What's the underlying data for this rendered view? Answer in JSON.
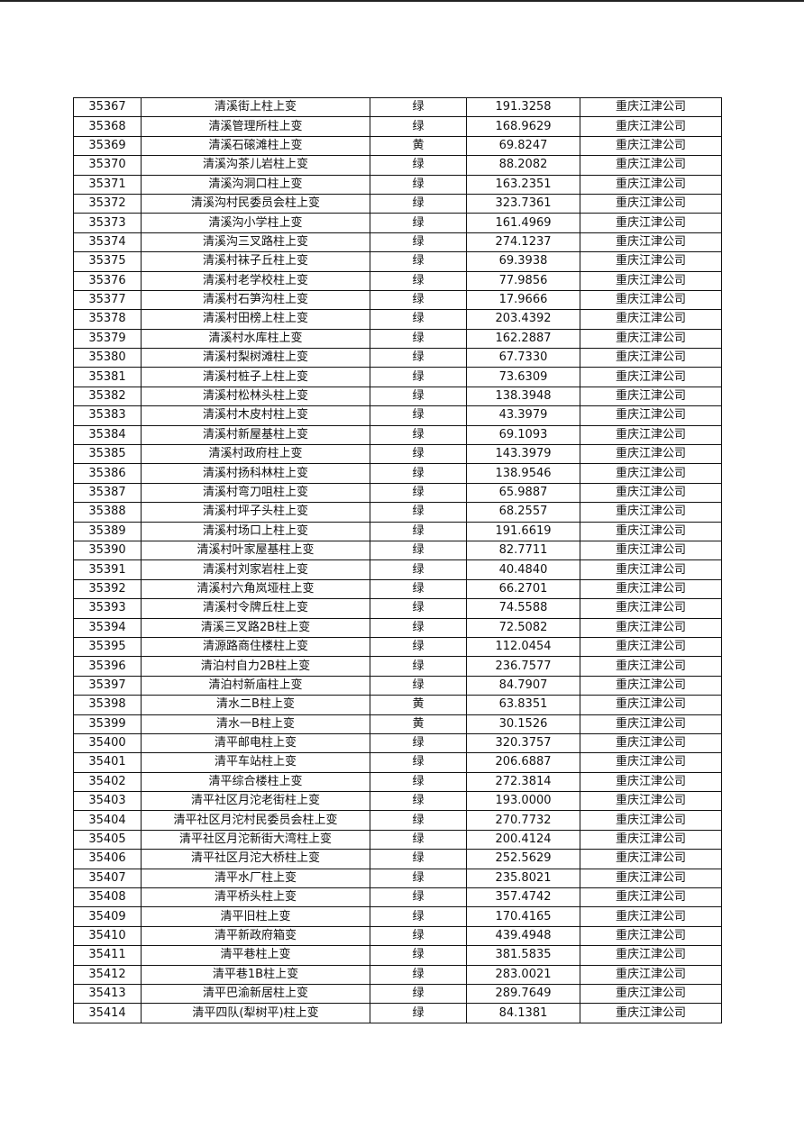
{
  "rows": [
    [
      "35367",
      "清溪街上柱上变",
      "绿",
      "191.3258",
      "重庆江津公司"
    ],
    [
      "35368",
      "清溪管理所柱上变",
      "绿",
      "168.9629",
      "重庆江津公司"
    ],
    [
      "35369",
      "清溪石磙滩柱上变",
      "黄",
      "69.8247",
      "重庆江津公司"
    ],
    [
      "35370",
      "清溪沟茶儿岩柱上变",
      "绿",
      "88.2082",
      "重庆江津公司"
    ],
    [
      "35371",
      "清溪沟洞口柱上变",
      "绿",
      "163.2351",
      "重庆江津公司"
    ],
    [
      "35372",
      "清溪沟村民委员会柱上变",
      "绿",
      "323.7361",
      "重庆江津公司"
    ],
    [
      "35373",
      "清溪沟小学柱上变",
      "绿",
      "161.4969",
      "重庆江津公司"
    ],
    [
      "35374",
      "清溪沟三叉路柱上变",
      "绿",
      "274.1237",
      "重庆江津公司"
    ],
    [
      "35375",
      "清溪村袜子丘柱上变",
      "绿",
      "69.3938",
      "重庆江津公司"
    ],
    [
      "35376",
      "清溪村老学校柱上变",
      "绿",
      "77.9856",
      "重庆江津公司"
    ],
    [
      "35377",
      "清溪村石笋沟柱上变",
      "绿",
      "17.9666",
      "重庆江津公司"
    ],
    [
      "35378",
      "清溪村田榜上柱上变",
      "绿",
      "203.4392",
      "重庆江津公司"
    ],
    [
      "35379",
      "清溪村水库柱上变",
      "绿",
      "162.2887",
      "重庆江津公司"
    ],
    [
      "35380",
      "清溪村梨树滩柱上变",
      "绿",
      "67.7330",
      "重庆江津公司"
    ],
    [
      "35381",
      "清溪村桩子上柱上变",
      "绿",
      "73.6309",
      "重庆江津公司"
    ],
    [
      "35382",
      "清溪村松林头柱上变",
      "绿",
      "138.3948",
      "重庆江津公司"
    ],
    [
      "35383",
      "清溪村木皮村柱上变",
      "绿",
      "43.3979",
      "重庆江津公司"
    ],
    [
      "35384",
      "清溪村新屋基柱上变",
      "绿",
      "69.1093",
      "重庆江津公司"
    ],
    [
      "35385",
      "清溪村政府柱上变",
      "绿",
      "143.3979",
      "重庆江津公司"
    ],
    [
      "35386",
      "清溪村扬科林柱上变",
      "绿",
      "138.9546",
      "重庆江津公司"
    ],
    [
      "35387",
      "清溪村弯刀咀柱上变",
      "绿",
      "65.9887",
      "重庆江津公司"
    ],
    [
      "35388",
      "清溪村坪子头柱上变",
      "绿",
      "68.2557",
      "重庆江津公司"
    ],
    [
      "35389",
      "清溪村场口上柱上变",
      "绿",
      "191.6619",
      "重庆江津公司"
    ],
    [
      "35390",
      "清溪村叶家屋基柱上变",
      "绿",
      "82.7711",
      "重庆江津公司"
    ],
    [
      "35391",
      "清溪村刘家岩柱上变",
      "绿",
      "40.4840",
      "重庆江津公司"
    ],
    [
      "35392",
      "清溪村六角岚垭柱上变",
      "绿",
      "66.2701",
      "重庆江津公司"
    ],
    [
      "35393",
      "清溪村令牌丘柱上变",
      "绿",
      "74.5588",
      "重庆江津公司"
    ],
    [
      "35394",
      "清溪三叉路2B柱上变",
      "绿",
      "72.5082",
      "重庆江津公司"
    ],
    [
      "35395",
      "清源路商住楼柱上变",
      "绿",
      "112.0454",
      "重庆江津公司"
    ],
    [
      "35396",
      "清泊村自力2B柱上变",
      "绿",
      "236.7577",
      "重庆江津公司"
    ],
    [
      "35397",
      "清泊村新庙柱上变",
      "绿",
      "84.7907",
      "重庆江津公司"
    ],
    [
      "35398",
      "清水二B柱上变",
      "黄",
      "63.8351",
      "重庆江津公司"
    ],
    [
      "35399",
      "清水一B柱上变",
      "黄",
      "30.1526",
      "重庆江津公司"
    ],
    [
      "35400",
      "清平邮电柱上变",
      "绿",
      "320.3757",
      "重庆江津公司"
    ],
    [
      "35401",
      "清平车站柱上变",
      "绿",
      "206.6887",
      "重庆江津公司"
    ],
    [
      "35402",
      "清平综合楼柱上变",
      "绿",
      "272.3814",
      "重庆江津公司"
    ],
    [
      "35403",
      "清平社区月沱老街柱上变",
      "绿",
      "193.0000",
      "重庆江津公司"
    ],
    [
      "35404",
      "清平社区月沱村民委员会柱上变",
      "绿",
      "270.7732",
      "重庆江津公司"
    ],
    [
      "35405",
      "清平社区月沱新街大湾柱上变",
      "绿",
      "200.4124",
      "重庆江津公司"
    ],
    [
      "35406",
      "清平社区月沱大桥柱上变",
      "绿",
      "252.5629",
      "重庆江津公司"
    ],
    [
      "35407",
      "清平水厂柱上变",
      "绿",
      "235.8021",
      "重庆江津公司"
    ],
    [
      "35408",
      "清平桥头柱上变",
      "绿",
      "357.4742",
      "重庆江津公司"
    ],
    [
      "35409",
      "清平旧柱上变",
      "绿",
      "170.4165",
      "重庆江津公司"
    ],
    [
      "35410",
      "清平新政府箱变",
      "绿",
      "439.4948",
      "重庆江津公司"
    ],
    [
      "35411",
      "清平巷柱上变",
      "绿",
      "381.5835",
      "重庆江津公司"
    ],
    [
      "35412",
      "清平巷1B柱上变",
      "绿",
      "283.0021",
      "重庆江津公司"
    ],
    [
      "35413",
      "清平巴渝新居柱上变",
      "绿",
      "289.7649",
      "重庆江津公司"
    ],
    [
      "35414",
      "清平四队(犁树平)柱上变",
      "绿",
      "84.1381",
      "重庆江津公司"
    ]
  ]
}
